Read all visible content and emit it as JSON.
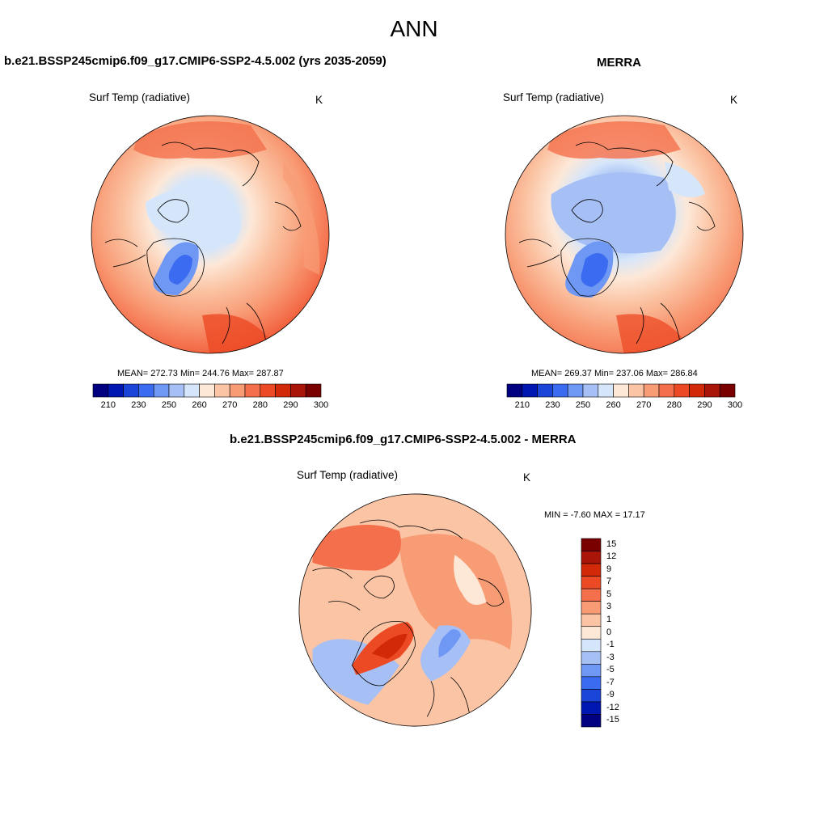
{
  "title": "ANN",
  "palette_abs": [
    "#000080",
    "#0016b0",
    "#1b45d9",
    "#3a6bf0",
    "#6f98f5",
    "#a6c0f5",
    "#d6e6fa",
    "#fde8d8",
    "#fbc4a4",
    "#f89c76",
    "#f46f4b",
    "#ec4a24",
    "#d22a09",
    "#a91508",
    "#7a0000"
  ],
  "palette_diff": [
    "#7a0000",
    "#a91508",
    "#d22a09",
    "#ec4a24",
    "#f46f4b",
    "#f89c76",
    "#fbc4a4",
    "#fde8d8",
    "#d6e6fa",
    "#a6c0f5",
    "#6f98f5",
    "#3a6bf0",
    "#1b45d9",
    "#0016b0",
    "#000080"
  ],
  "panels": {
    "model": {
      "title": "b.e21.BSSP245cmip6.f09_g17.CMIP6-SSP2-4.5.002 (yrs 2035-2059)",
      "var_label": "Surf Temp (radiative)",
      "units": "K",
      "stats": "MEAN= 272.73  Min= 244.76  Max= 287.87",
      "colorbar_ticks": [
        "210",
        "230",
        "250",
        "260",
        "270",
        "280",
        "290",
        "300"
      ]
    },
    "obs": {
      "title": "MERRA",
      "var_label": "Surf Temp (radiative)",
      "units": "K",
      "stats": "MEAN= 269.37  Min= 237.06  Max= 286.84",
      "colorbar_ticks": [
        "210",
        "230",
        "250",
        "260",
        "270",
        "280",
        "290",
        "300"
      ]
    },
    "diff": {
      "title": "b.e21.BSSP245cmip6.f09_g17.CMIP6-SSP2-4.5.002 - MERRA",
      "var_label": "Surf Temp (radiative)",
      "units": "K",
      "stats": "MIN =  -7.60 MAX =  17.17",
      "colorbar_ticks": [
        "15",
        "12",
        "9",
        "7",
        "5",
        "3",
        "1",
        "0",
        "-1",
        "-3",
        "-5",
        "-7",
        "-9",
        "-12",
        "-15"
      ]
    }
  }
}
